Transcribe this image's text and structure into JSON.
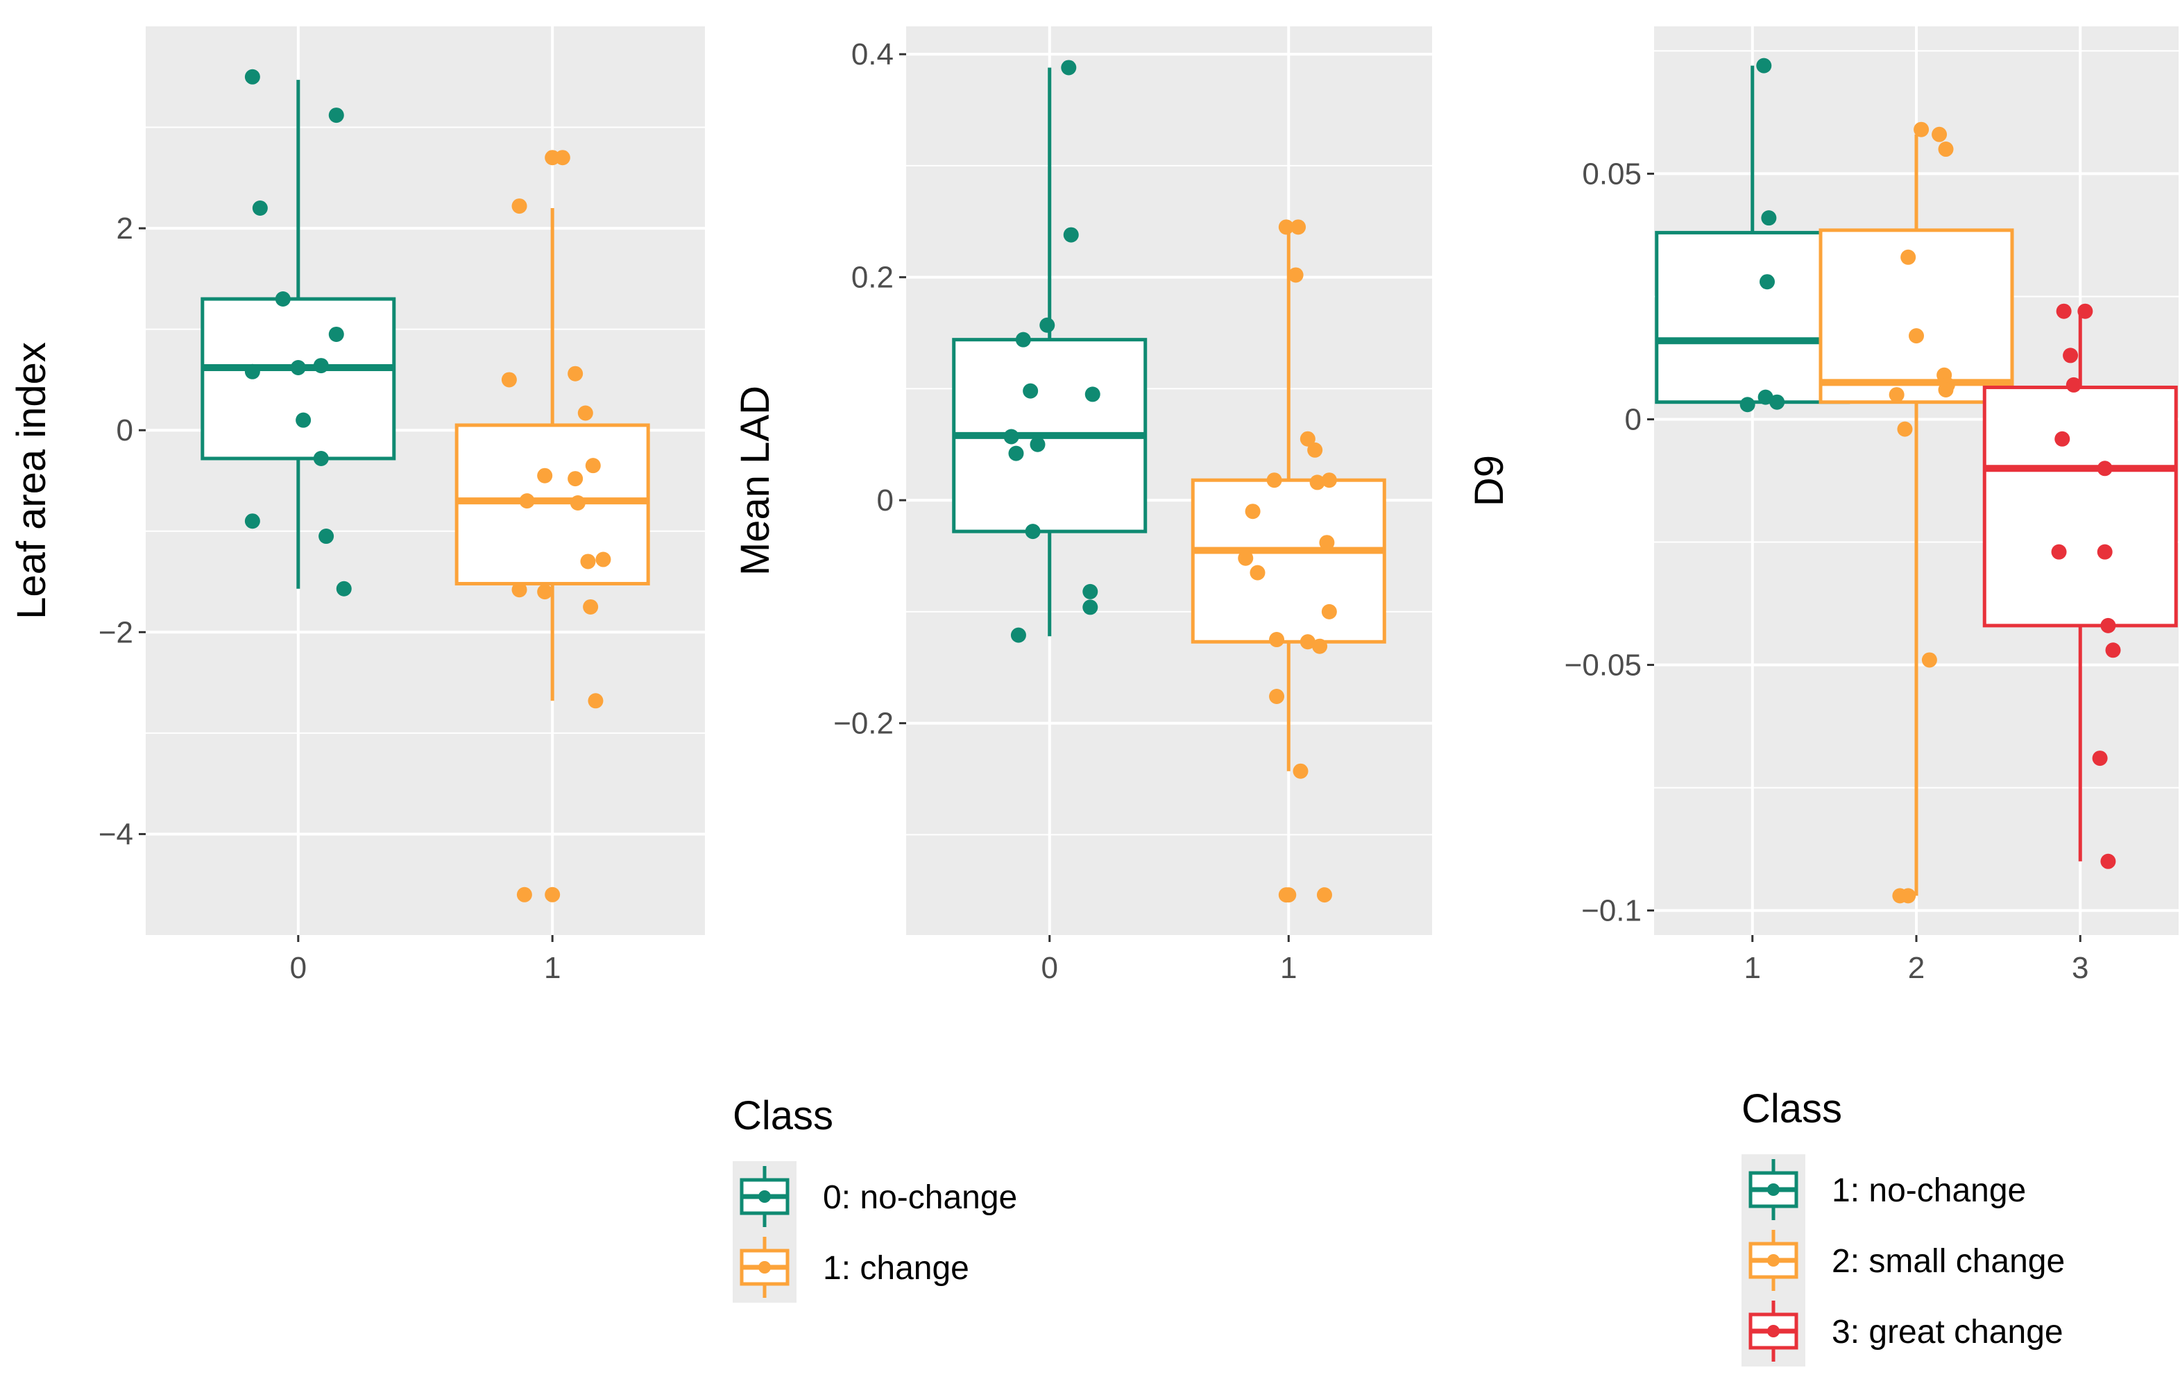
{
  "chart_data": [
    {
      "type": "box",
      "ylabel": "Leaf area index",
      "xlabel": "",
      "categories": [
        "0",
        "1"
      ],
      "ylim": [
        -5,
        4
      ],
      "yticks": [
        2,
        0,
        -2,
        -4
      ],
      "ytick_labels": [
        "2",
        "0",
        "−2",
        "−4"
      ],
      "grid": true,
      "boxes": [
        {
          "category": "0",
          "class": "0: no-change",
          "color": "#0f8a72",
          "q1": -0.28,
          "median": 0.62,
          "q3": 1.3,
          "whisker_low": -1.57,
          "whisker_high": 3.47
        },
        {
          "category": "1",
          "class": "1: change",
          "color": "#fca33a",
          "q1": -1.52,
          "median": -0.7,
          "q3": 0.05,
          "whisker_low": -2.68,
          "whisker_high": 2.2
        }
      ],
      "points": [
        {
          "category": "0",
          "jitter": -0.18,
          "y": 3.5
        },
        {
          "category": "0",
          "jitter": 0.15,
          "y": 3.12
        },
        {
          "category": "0",
          "jitter": -0.15,
          "y": 2.2
        },
        {
          "category": "0",
          "jitter": -0.06,
          "y": 1.3
        },
        {
          "category": "0",
          "jitter": 0.15,
          "y": 0.95
        },
        {
          "category": "0",
          "jitter": -0.18,
          "y": 0.58
        },
        {
          "category": "0",
          "jitter": 0.0,
          "y": 0.62
        },
        {
          "category": "0",
          "jitter": 0.09,
          "y": 0.64
        },
        {
          "category": "0",
          "jitter": 0.02,
          "y": 0.1
        },
        {
          "category": "0",
          "jitter": 0.09,
          "y": -0.28
        },
        {
          "category": "0",
          "jitter": -0.18,
          "y": -0.9
        },
        {
          "category": "0",
          "jitter": 0.11,
          "y": -1.05
        },
        {
          "category": "0",
          "jitter": 0.18,
          "y": -1.57
        },
        {
          "category": "1",
          "jitter": 0.0,
          "y": 2.7
        },
        {
          "category": "1",
          "jitter": 0.04,
          "y": 2.7
        },
        {
          "category": "1",
          "jitter": -0.13,
          "y": 2.22
        },
        {
          "category": "1",
          "jitter": -0.17,
          "y": 0.5
        },
        {
          "category": "1",
          "jitter": 0.09,
          "y": 0.56
        },
        {
          "category": "1",
          "jitter": 0.13,
          "y": 0.17
        },
        {
          "category": "1",
          "jitter": 0.16,
          "y": -0.35
        },
        {
          "category": "1",
          "jitter": -0.03,
          "y": -0.45
        },
        {
          "category": "1",
          "jitter": 0.09,
          "y": -0.48
        },
        {
          "category": "1",
          "jitter": -0.1,
          "y": -0.7
        },
        {
          "category": "1",
          "jitter": 0.1,
          "y": -0.72
        },
        {
          "category": "1",
          "jitter": 0.14,
          "y": -1.3
        },
        {
          "category": "1",
          "jitter": 0.2,
          "y": -1.28
        },
        {
          "category": "1",
          "jitter": -0.13,
          "y": -1.58
        },
        {
          "category": "1",
          "jitter": -0.03,
          "y": -1.6
        },
        {
          "category": "1",
          "jitter": 0.15,
          "y": -1.75
        },
        {
          "category": "1",
          "jitter": 0.17,
          "y": -2.68
        },
        {
          "category": "1",
          "jitter": -0.11,
          "y": -4.6
        },
        {
          "category": "1",
          "jitter": 0.0,
          "y": -4.6
        }
      ]
    },
    {
      "type": "box",
      "ylabel": "Mean LAD",
      "xlabel": "",
      "categories": [
        "0",
        "1"
      ],
      "ylim": [
        -0.39,
        0.425
      ],
      "yticks": [
        0.4,
        0.2,
        0,
        -0.2
      ],
      "ytick_labels": [
        "0.4",
        "0.2",
        "0",
        "−0.2"
      ],
      "grid": true,
      "boxes": [
        {
          "category": "0",
          "class": "0: no-change",
          "color": "#0f8a72",
          "q1": -0.028,
          "median": 0.058,
          "q3": 0.144,
          "whisker_low": -0.122,
          "whisker_high": 0.388
        },
        {
          "category": "1",
          "class": "1: change",
          "color": "#fca33a",
          "q1": -0.127,
          "median": -0.045,
          "q3": 0.018,
          "whisker_low": -0.243,
          "whisker_high": 0.245
        }
      ],
      "points": [
        {
          "category": "0",
          "jitter": 0.08,
          "y": 0.388
        },
        {
          "category": "0",
          "jitter": 0.09,
          "y": 0.238
        },
        {
          "category": "0",
          "jitter": -0.01,
          "y": 0.157
        },
        {
          "category": "0",
          "jitter": -0.11,
          "y": 0.144
        },
        {
          "category": "0",
          "jitter": -0.08,
          "y": 0.098
        },
        {
          "category": "0",
          "jitter": 0.18,
          "y": 0.095
        },
        {
          "category": "0",
          "jitter": -0.16,
          "y": 0.057
        },
        {
          "category": "0",
          "jitter": -0.05,
          "y": 0.05
        },
        {
          "category": "0",
          "jitter": -0.14,
          "y": 0.042
        },
        {
          "category": "0",
          "jitter": -0.07,
          "y": -0.028
        },
        {
          "category": "0",
          "jitter": 0.17,
          "y": -0.082
        },
        {
          "category": "0",
          "jitter": 0.17,
          "y": -0.096
        },
        {
          "category": "0",
          "jitter": -0.13,
          "y": -0.121
        },
        {
          "category": "1",
          "jitter": -0.01,
          "y": 0.245
        },
        {
          "category": "1",
          "jitter": 0.04,
          "y": 0.245
        },
        {
          "category": "1",
          "jitter": 0.03,
          "y": 0.202
        },
        {
          "category": "1",
          "jitter": 0.08,
          "y": 0.055
        },
        {
          "category": "1",
          "jitter": 0.11,
          "y": 0.045
        },
        {
          "category": "1",
          "jitter": -0.06,
          "y": 0.018
        },
        {
          "category": "1",
          "jitter": 0.12,
          "y": 0.016
        },
        {
          "category": "1",
          "jitter": 0.17,
          "y": 0.018
        },
        {
          "category": "1",
          "jitter": -0.15,
          "y": -0.01
        },
        {
          "category": "1",
          "jitter": 0.16,
          "y": -0.038
        },
        {
          "category": "1",
          "jitter": -0.18,
          "y": -0.052
        },
        {
          "category": "1",
          "jitter": -0.13,
          "y": -0.065
        },
        {
          "category": "1",
          "jitter": 0.17,
          "y": -0.1
        },
        {
          "category": "1",
          "jitter": -0.05,
          "y": -0.125
        },
        {
          "category": "1",
          "jitter": 0.08,
          "y": -0.127
        },
        {
          "category": "1",
          "jitter": 0.13,
          "y": -0.131
        },
        {
          "category": "1",
          "jitter": -0.05,
          "y": -0.176
        },
        {
          "category": "1",
          "jitter": 0.05,
          "y": -0.243
        },
        {
          "category": "1",
          "jitter": -0.01,
          "y": -0.354
        },
        {
          "category": "1",
          "jitter": 0.0,
          "y": -0.354
        },
        {
          "category": "1",
          "jitter": 0.15,
          "y": -0.354
        }
      ]
    },
    {
      "type": "box",
      "ylabel": "D9",
      "xlabel": "",
      "categories": [
        "1",
        "2",
        "3"
      ],
      "ylim": [
        -0.105,
        0.08
      ],
      "yticks": [
        0.05,
        0,
        -0.05,
        -0.1
      ],
      "ytick_labels": [
        "0.05",
        "0",
        "−0.05",
        "−0.1"
      ],
      "grid": true,
      "boxes": [
        {
          "category": "1",
          "class": "1: no-change",
          "color": "#0f8a72",
          "q1": 0.0035,
          "median": 0.016,
          "q3": 0.038,
          "whisker_low": 0.0035,
          "whisker_high": 0.072
        },
        {
          "category": "2",
          "class": "2: small change",
          "color": "#fca33a",
          "q1": 0.0035,
          "median": 0.0075,
          "q3": 0.0385,
          "whisker_low": -0.097,
          "whisker_high": 0.058
        },
        {
          "category": "3",
          "class": "3: great change",
          "color": "#e8313a",
          "q1": -0.042,
          "median": -0.01,
          "q3": 0.0065,
          "whisker_low": -0.09,
          "whisker_high": 0.022
        }
      ],
      "points": [
        {
          "category": "1",
          "jitter": 0.07,
          "y": 0.072
        },
        {
          "category": "1",
          "jitter": 0.1,
          "y": 0.041
        },
        {
          "category": "1",
          "jitter": 0.09,
          "y": 0.028
        },
        {
          "category": "1",
          "jitter": -0.03,
          "y": 0.003
        },
        {
          "category": "1",
          "jitter": 0.08,
          "y": 0.0045
        },
        {
          "category": "1",
          "jitter": 0.15,
          "y": 0.0035
        },
        {
          "category": "2",
          "jitter": 0.14,
          "y": 0.058
        },
        {
          "category": "2",
          "jitter": 0.03,
          "y": 0.059
        },
        {
          "category": "2",
          "jitter": 0.18,
          "y": 0.055
        },
        {
          "category": "2",
          "jitter": -0.05,
          "y": 0.033
        },
        {
          "category": "2",
          "jitter": 0.0,
          "y": 0.017
        },
        {
          "category": "2",
          "jitter": 0.17,
          "y": 0.009
        },
        {
          "category": "2",
          "jitter": 0.19,
          "y": 0.007
        },
        {
          "category": "2",
          "jitter": 0.18,
          "y": 0.006
        },
        {
          "category": "2",
          "jitter": -0.12,
          "y": 0.005
        },
        {
          "category": "2",
          "jitter": -0.07,
          "y": -0.002
        },
        {
          "category": "2",
          "jitter": 0.08,
          "y": -0.049
        },
        {
          "category": "2",
          "jitter": -0.1,
          "y": -0.097
        },
        {
          "category": "2",
          "jitter": -0.05,
          "y": -0.097
        },
        {
          "category": "3",
          "jitter": -0.1,
          "y": 0.022
        },
        {
          "category": "3",
          "jitter": 0.03,
          "y": 0.022
        },
        {
          "category": "3",
          "jitter": -0.06,
          "y": 0.013
        },
        {
          "category": "3",
          "jitter": -0.04,
          "y": 0.007
        },
        {
          "category": "3",
          "jitter": -0.11,
          "y": -0.004
        },
        {
          "category": "3",
          "jitter": 0.15,
          "y": -0.01
        },
        {
          "category": "3",
          "jitter": -0.13,
          "y": -0.027
        },
        {
          "category": "3",
          "jitter": 0.15,
          "y": -0.027
        },
        {
          "category": "3",
          "jitter": 0.17,
          "y": -0.042
        },
        {
          "category": "3",
          "jitter": 0.2,
          "y": -0.047
        },
        {
          "category": "3",
          "jitter": 0.12,
          "y": -0.069
        },
        {
          "category": "3",
          "jitter": 0.17,
          "y": -0.09
        }
      ]
    }
  ],
  "legends": [
    {
      "title": "Class",
      "entries": [
        {
          "label": "0: no-change",
          "color": "#0f8a72"
        },
        {
          "label": "1: change",
          "color": "#fca33a"
        }
      ]
    },
    {
      "title": "Class",
      "entries": [
        {
          "label": "1: no-change",
          "color": "#0f8a72"
        },
        {
          "label": "2: small change",
          "color": "#fca33a"
        },
        {
          "label": "3: great change",
          "color": "#e8313a"
        }
      ]
    }
  ],
  "style": {
    "panel_background": "#ebebeb",
    "grid_color": "#ffffff",
    "tick_color": "#333333",
    "box_fill": "#ffffff"
  }
}
